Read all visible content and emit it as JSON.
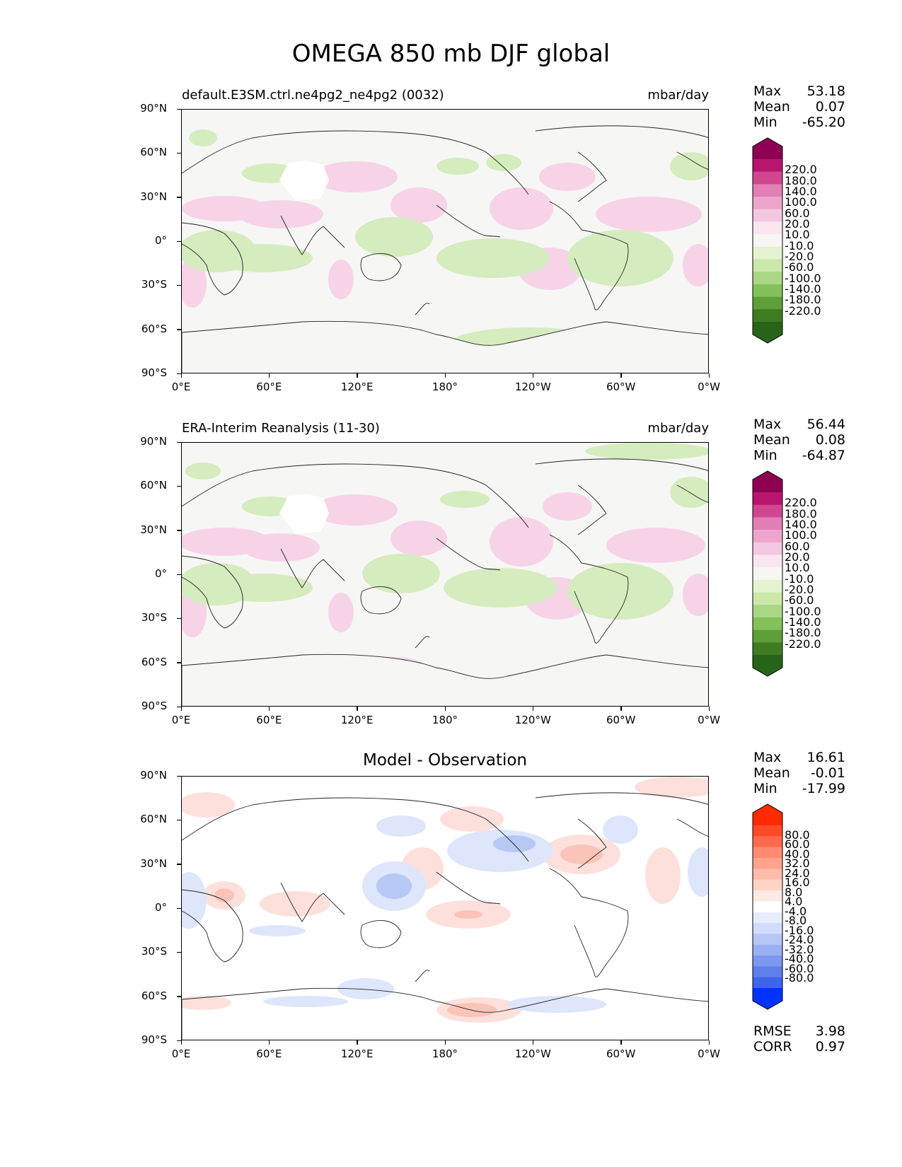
{
  "figure_title": "OMEGA 850 mb DJF global",
  "x_ticks": [
    "0°E",
    "60°E",
    "120°E",
    "180°",
    "120°W",
    "60°W",
    "0°W"
  ],
  "y_ticks": [
    "90°N",
    "60°N",
    "30°N",
    "0°",
    "30°S",
    "60°S",
    "90°S"
  ],
  "panels": [
    {
      "id": "model",
      "title_left": "default.E3SM.ctrl.ne4pg2_ne4pg2 (0032)",
      "title_right": "mbar/day",
      "title_center": "",
      "stats": {
        "max_label": "Max",
        "max": "53.18",
        "mean_label": "Mean",
        "mean": "0.07",
        "min_label": "Min",
        "min": "-65.20"
      },
      "colorbar_levels": [
        "220.0",
        "180.0",
        "140.0",
        "100.0",
        "60.0",
        "20.0",
        "10.0",
        "-10.0",
        "-20.0",
        "-60.0",
        "-100.0",
        "-140.0",
        "-180.0",
        "-220.0"
      ],
      "colors": {
        "top_extend": "#8e0152",
        "bottom_extend": "#276419"
      }
    },
    {
      "id": "obs",
      "title_left": "ERA-Interim Reanalysis (11-30)",
      "title_right": "mbar/day",
      "title_center": "",
      "stats": {
        "max_label": "Max",
        "max": "56.44",
        "mean_label": "Mean",
        "mean": "0.08",
        "min_label": "Min",
        "min": "-64.87"
      },
      "colorbar_levels": [
        "220.0",
        "180.0",
        "140.0",
        "100.0",
        "60.0",
        "20.0",
        "10.0",
        "-10.0",
        "-20.0",
        "-60.0",
        "-100.0",
        "-140.0",
        "-180.0",
        "-220.0"
      ],
      "colors": {
        "top_extend": "#8e0152",
        "bottom_extend": "#276419"
      }
    },
    {
      "id": "diff",
      "title_left": "",
      "title_right": "",
      "title_center": "Model - Observation",
      "stats": {
        "max_label": "Max",
        "max": "16.61",
        "mean_label": "Mean",
        "mean": "-0.01",
        "min_label": "Min",
        "min": "-17.99"
      },
      "colorbar_levels": [
        "80.0",
        "60.0",
        "40.0",
        "32.0",
        "24.0",
        "16.0",
        "8.0",
        "4.0",
        "-4.0",
        "-8.0",
        "-16.0",
        "-24.0",
        "-32.0",
        "-40.0",
        "-60.0",
        "-80.0"
      ],
      "colors": {
        "top_extend": "#ff2a00",
        "bottom_extend": "#0033ff"
      },
      "extra_stats": {
        "rmse_label": "RMSE",
        "rmse": "3.98",
        "corr_label": "CORR",
        "corr": "0.97"
      }
    }
  ]
}
